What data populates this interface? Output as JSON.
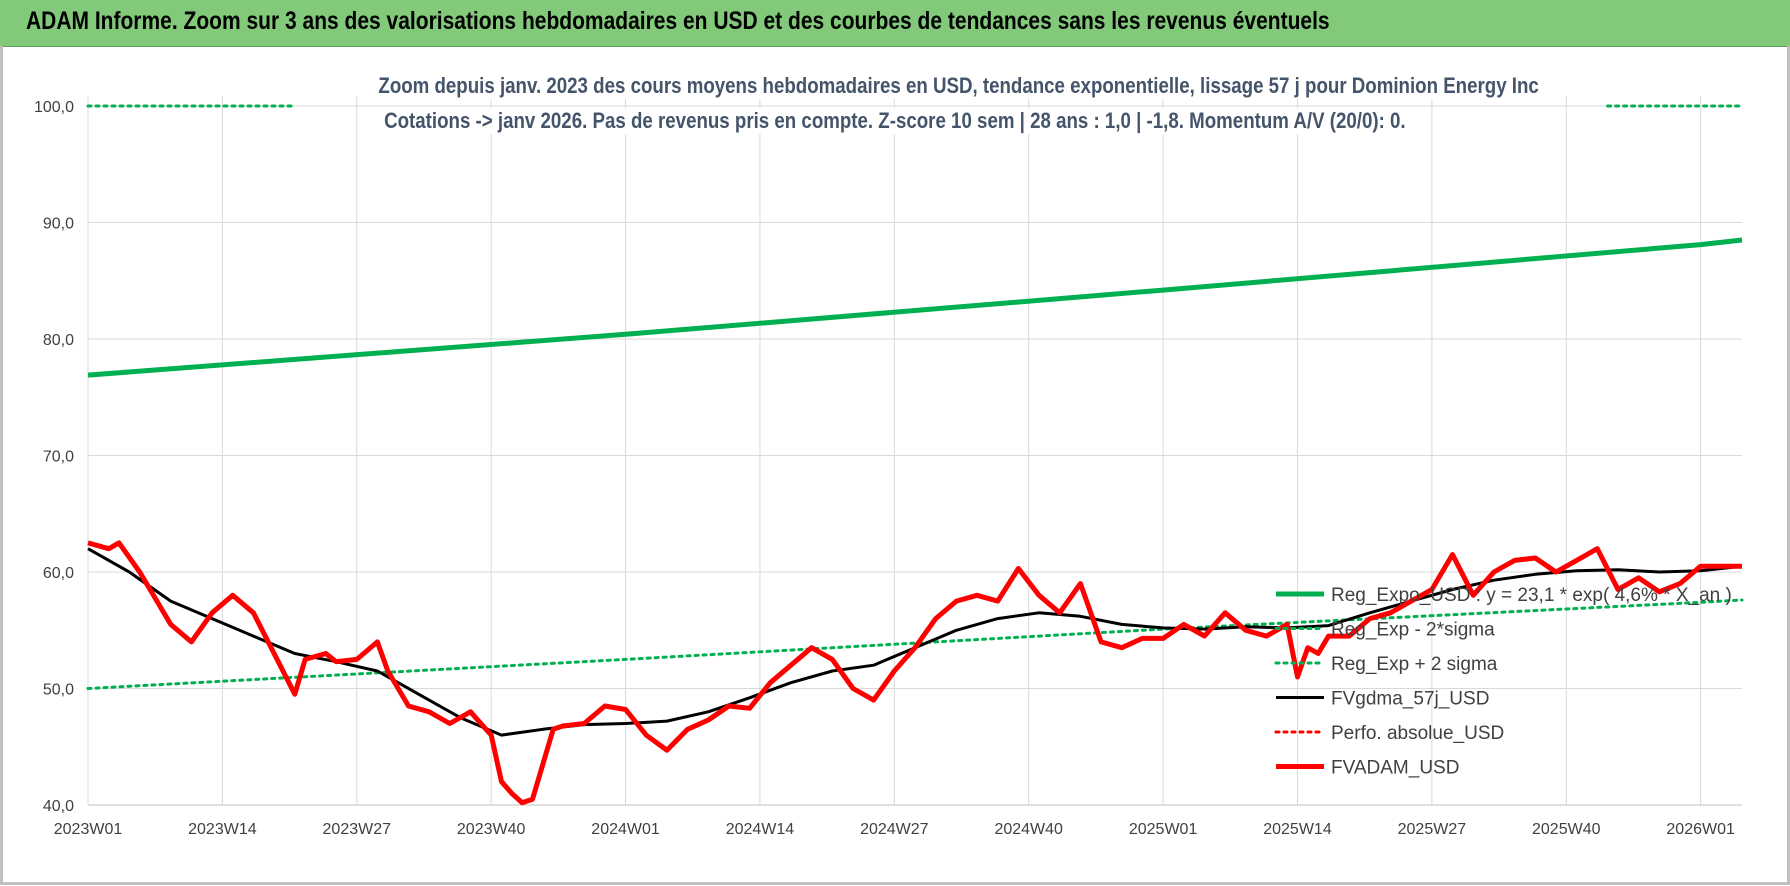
{
  "header": {
    "title": "ADAM Informe. Zoom sur 3 ans des valorisations hebdomadaires en USD et des courbes de tendances sans les revenus éventuels"
  },
  "chart_data": {
    "type": "line",
    "subtitle_line1": "Zoom depuis janv. 2023 des cours moyens hebdomadaires en USD, tendance exponentielle, lissage 57 j pour Dominion Energy Inc",
    "subtitle_line2": "Cotations -> janv 2026. Pas de revenus pris en compte. Z-score 10 sem | 28 ans : 1,0 | -1,8. Momentum A/V (20/0): 0.",
    "ylim": [
      40,
      100
    ],
    "yticks": [
      "40,0",
      "50,0",
      "60,0",
      "70,0",
      "80,0",
      "90,0",
      "100,0"
    ],
    "ytick_values": [
      40,
      50,
      60,
      70,
      80,
      90,
      100
    ],
    "xticks": [
      "2023W01",
      "2023W14",
      "2023W27",
      "2023W40",
      "2024W01",
      "2024W14",
      "2024W27",
      "2024W40",
      "2025W01",
      "2025W14",
      "2025W27",
      "2025W40",
      "2026W01"
    ],
    "xtick_weeks": [
      0,
      13,
      26,
      39,
      52,
      65,
      78,
      91,
      104,
      117,
      130,
      143,
      156
    ],
    "x_max_week": 160,
    "grid": true,
    "legend_position": "right",
    "series": [
      {
        "name": "Reg_Expo_USD : y = 23,1 * exp( 4,6% * X_an )",
        "color": "#00b050",
        "style": "solid-thick",
        "x_weeks": [
          0,
          52,
          104,
          156,
          160
        ],
        "values": [
          76.9,
          80.4,
          84.2,
          88.1,
          88.5
        ]
      },
      {
        "name": "Reg_Exp - 2*sigma",
        "color": "#00b050",
        "style": "dotted",
        "x_weeks": [
          0,
          52,
          104,
          156,
          160
        ],
        "values": [
          50.0,
          52.5,
          55.1,
          57.4,
          57.6
        ]
      },
      {
        "name": "Reg_Exp + 2 sigma",
        "color": "#00b050",
        "style": "dotted",
        "x_weeks": [
          0,
          20,
          147,
          160
        ],
        "values": [
          100,
          100,
          100,
          100
        ]
      },
      {
        "name": "FVgdma_57j_USD",
        "color": "#000000",
        "style": "solid",
        "x_weeks": [
          0,
          4,
          8,
          12,
          16,
          20,
          24,
          28,
          32,
          36,
          40,
          44,
          48,
          52,
          56,
          60,
          64,
          68,
          72,
          76,
          80,
          84,
          88,
          92,
          96,
          100,
          104,
          108,
          112,
          116,
          120,
          124,
          128,
          132,
          136,
          140,
          144,
          148,
          152,
          156,
          160
        ],
        "values": [
          62.0,
          60.0,
          57.5,
          56.0,
          54.5,
          53.0,
          52.3,
          51.5,
          49.5,
          47.5,
          46.0,
          46.5,
          46.9,
          47.0,
          47.2,
          48.0,
          49.2,
          50.5,
          51.5,
          52.0,
          53.5,
          55.0,
          56.0,
          56.5,
          56.2,
          55.5,
          55.2,
          55.1,
          55.3,
          55.2,
          55.4,
          56.5,
          57.5,
          58.5,
          59.3,
          59.8,
          60.1,
          60.2,
          60.0,
          60.1,
          60.5
        ]
      },
      {
        "name": "Perfo. absolue_USD",
        "color": "#ff0000",
        "style": "dotted",
        "x_weeks": [],
        "values": []
      },
      {
        "name": "FVADAM_USD",
        "color": "#ff0000",
        "style": "solid-thick",
        "x_weeks": [
          0,
          2,
          3,
          5,
          8,
          10,
          12,
          14,
          16,
          18,
          20,
          21,
          23,
          24,
          26,
          28,
          29,
          31,
          33,
          35,
          37,
          39,
          40,
          41,
          42,
          43,
          45,
          46,
          48,
          50,
          52,
          54,
          56,
          58,
          60,
          62,
          64,
          66,
          68,
          70,
          72,
          74,
          76,
          78,
          80,
          82,
          84,
          86,
          88,
          90,
          92,
          94,
          96,
          98,
          100,
          102,
          104,
          106,
          108,
          110,
          112,
          114,
          116,
          117,
          118,
          119,
          120,
          122,
          124,
          126,
          128,
          130,
          132,
          134,
          136,
          138,
          140,
          142,
          144,
          146,
          148,
          150,
          152,
          154,
          156,
          158,
          160
        ],
        "values": [
          62.5,
          62.0,
          62.5,
          60.0,
          55.5,
          54.0,
          56.5,
          58.0,
          56.5,
          53.0,
          49.5,
          52.5,
          53.0,
          52.3,
          52.5,
          54.0,
          51.5,
          48.5,
          48.0,
          47.0,
          48.0,
          46.0,
          42.0,
          41.0,
          40.2,
          40.5,
          46.5,
          46.8,
          47.0,
          48.5,
          48.2,
          46.0,
          44.7,
          46.5,
          47.3,
          48.5,
          48.3,
          50.5,
          52.0,
          53.5,
          52.5,
          50.0,
          49.0,
          51.5,
          53.5,
          56.0,
          57.5,
          58.0,
          57.5,
          60.3,
          58.0,
          56.5,
          59.0,
          54.0,
          53.5,
          54.3,
          54.3,
          55.5,
          54.5,
          56.5,
          55.0,
          54.5,
          55.5,
          51.0,
          53.5,
          53.0,
          54.5,
          54.5,
          56.0,
          56.5,
          57.5,
          58.5,
          61.5,
          58.0,
          60.0,
          61.0,
          61.2,
          60.0,
          61.0,
          62.0,
          58.5,
          59.5,
          58.3,
          59.0,
          60.5,
          60.5,
          60.5
        ]
      }
    ]
  }
}
